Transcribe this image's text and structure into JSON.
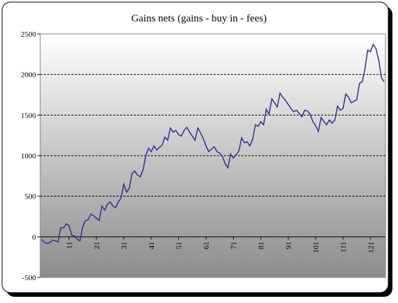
{
  "chart_data": {
    "type": "line",
    "title": "Gains nets (gains - buy in - fees)",
    "x": [
      1,
      2,
      3,
      4,
      5,
      6,
      7,
      8,
      9,
      10,
      11,
      12,
      13,
      14,
      15,
      16,
      17,
      18,
      19,
      20,
      21,
      22,
      23,
      24,
      25,
      26,
      27,
      28,
      29,
      30,
      31,
      32,
      33,
      34,
      35,
      36,
      37,
      38,
      39,
      40,
      41,
      42,
      43,
      44,
      45,
      46,
      47,
      48,
      49,
      50,
      51,
      52,
      53,
      54,
      55,
      56,
      57,
      58,
      59,
      60,
      61,
      62,
      63,
      64,
      65,
      66,
      67,
      68,
      69,
      70,
      71,
      72,
      73,
      74,
      75,
      76,
      77,
      78,
      79,
      80,
      81,
      82,
      83,
      84,
      85,
      86,
      87,
      88,
      89,
      90,
      91,
      92,
      93,
      94,
      95,
      96,
      97,
      98,
      99,
      100,
      101,
      102,
      103,
      104,
      105,
      106,
      107,
      108,
      109,
      110,
      111,
      112,
      113,
      114,
      115,
      116,
      117,
      118,
      119,
      120,
      121,
      122,
      123,
      124,
      125,
      126
    ],
    "values": [
      -30,
      -70,
      -80,
      -70,
      -40,
      -50,
      -60,
      110,
      110,
      160,
      140,
      20,
      10,
      -30,
      -50,
      120,
      200,
      210,
      280,
      260,
      230,
      200,
      380,
      330,
      400,
      430,
      380,
      360,
      430,
      480,
      650,
      550,
      600,
      780,
      810,
      760,
      740,
      820,
      1000,
      1090,
      1050,
      1120,
      1070,
      1100,
      1130,
      1230,
      1190,
      1340,
      1290,
      1310,
      1260,
      1240,
      1310,
      1350,
      1290,
      1240,
      1190,
      1340,
      1280,
      1210,
      1120,
      1050,
      1080,
      1110,
      1050,
      1030,
      990,
      900,
      850,
      1020,
      970,
      1010,
      1060,
      1220,
      1160,
      1170,
      1120,
      1200,
      1380,
      1360,
      1420,
      1380,
      1570,
      1510,
      1700,
      1650,
      1600,
      1770,
      1720,
      1680,
      1630,
      1580,
      1540,
      1560,
      1520,
      1480,
      1560,
      1550,
      1510,
      1420,
      1370,
      1300,
      1470,
      1420,
      1380,
      1440,
      1400,
      1440,
      1610,
      1560,
      1580,
      1760,
      1720,
      1650,
      1670,
      1690,
      1890,
      1910,
      2070,
      2300,
      2280,
      2370,
      2320,
      2180,
      1960,
      1910
    ],
    "color": "#2e3192",
    "xlim": [
      0.5,
      126.5
    ],
    "xticks": [
      11,
      21,
      31,
      41,
      51,
      61,
      71,
      81,
      91,
      101,
      111,
      121
    ],
    "ylim": [
      -500,
      2500
    ],
    "yticks": [
      -500,
      0,
      500,
      1000,
      1500,
      2000,
      2500
    ],
    "grid": true
  }
}
